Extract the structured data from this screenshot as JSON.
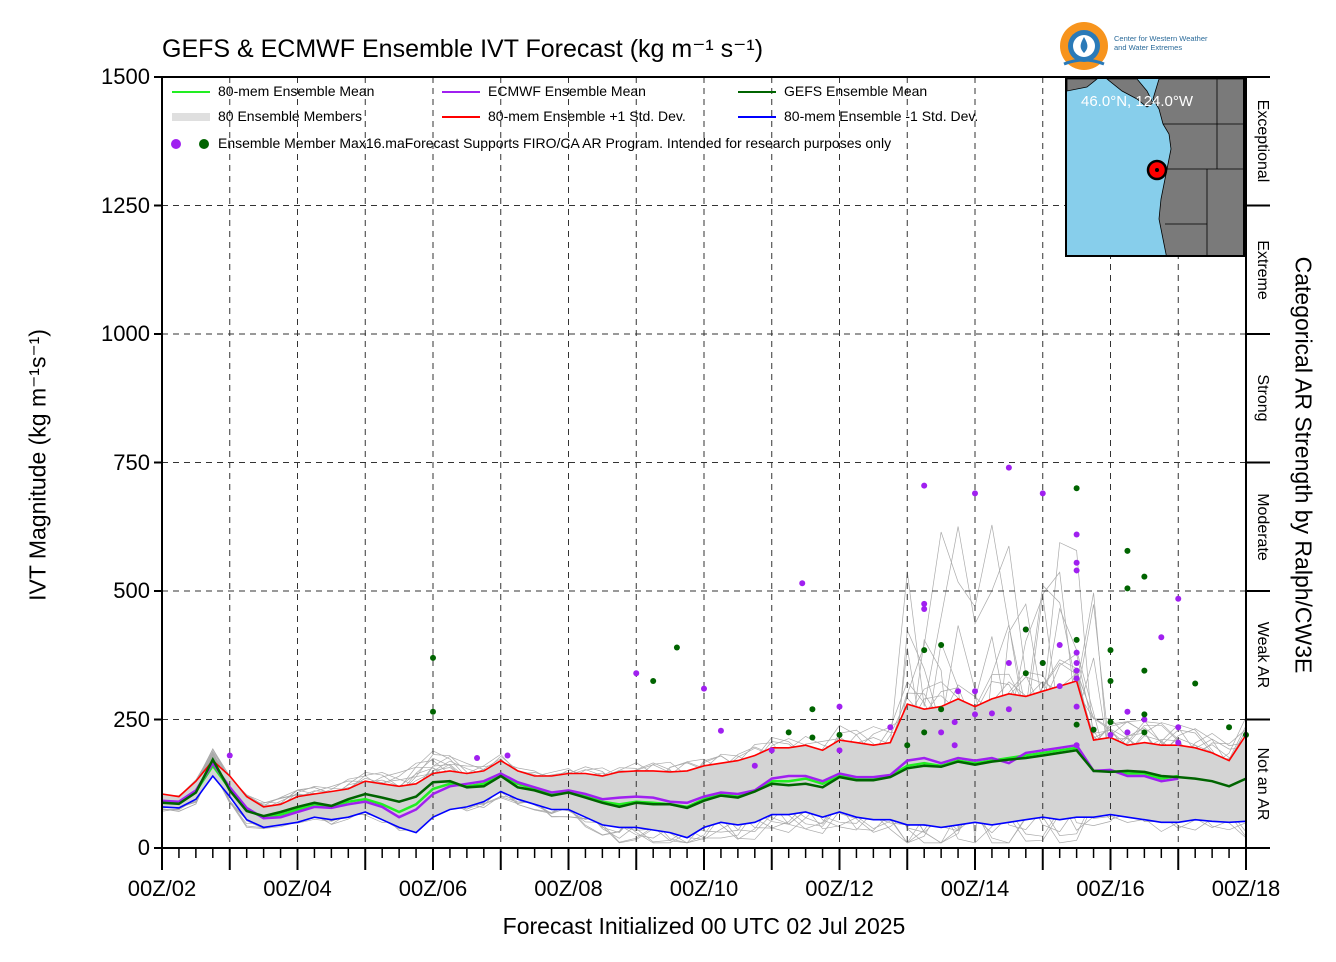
{
  "chart_data": {
    "type": "line",
    "title": "GEFS & ECMWF Ensemble IVT Forecast (kg m⁻¹ s⁻¹)",
    "xlabel": "Forecast Initialized 00 UTC 02 Jul 2025",
    "ylabel": "IVT Magnitude (kg m⁻¹s⁻¹)",
    "y2label": "Categorical AR Strength by Ralph/CW3E",
    "ylim": [
      0,
      1500
    ],
    "xlim_days": [
      2,
      18
    ],
    "yticks": [
      "0",
      "250",
      "500",
      "750",
      "1000",
      "1250",
      "1500"
    ],
    "xticks": [
      "00Z/02",
      "00Z/04",
      "00Z/06",
      "00Z/08",
      "00Z/10",
      "00Z/12",
      "00Z/14",
      "00Z/16",
      "00Z/18"
    ],
    "grid": true,
    "legend_position": "top-left",
    "categories": [
      {
        "label": "Not an AR",
        "range": [
          0,
          250
        ]
      },
      {
        "label": "Weak AR",
        "range": [
          250,
          500
        ]
      },
      {
        "label": "Moderate",
        "range": [
          500,
          750
        ]
      },
      {
        "label": "Strong",
        "range": [
          750,
          1000
        ]
      },
      {
        "label": "Extreme",
        "range": [
          1000,
          1250
        ]
      },
      {
        "label": "Exceptional",
        "range": [
          1250,
          1500
        ]
      }
    ],
    "legend": [
      {
        "label": "80-mem Ensemble Mean",
        "color": "#22ee22"
      },
      {
        "label": "ECMWF Ensemble Mean",
        "color": "#a020f0"
      },
      {
        "label": "GEFS Ensemble Mean",
        "color": "#006400"
      },
      {
        "label": "80 Ensemble Members",
        "color": "#aaaaaa"
      },
      {
        "label": "80-mem Ensemble +1 Std. Dev.",
        "color": "#ff0000"
      },
      {
        "label": "80-mem Ensemble -1 Std. Dev.",
        "color": "#0000ff"
      },
      {
        "label": "Ensemble Member Max16.maForecast Supports FIRO/CA AR Program. Intended for research purposes only",
        "color": "#a020f0"
      }
    ],
    "series": [
      {
        "name": "80-mem Ensemble Mean",
        "color": "#22ee22",
        "x": [
          2.0,
          2.25,
          2.5,
          2.75,
          3.0,
          3.25,
          3.5,
          3.75,
          4.0,
          4.25,
          4.5,
          4.75,
          5.0,
          5.25,
          5.5,
          5.75,
          6.0,
          6.25,
          6.5,
          6.75,
          7.0,
          7.25,
          7.5,
          7.75,
          8.0,
          8.25,
          8.5,
          8.75,
          9.0,
          9.25,
          9.5,
          9.75,
          10.0,
          10.25,
          10.5,
          10.75,
          11.0,
          11.25,
          11.5,
          11.75,
          12.0,
          12.25,
          12.5,
          12.75,
          13.0,
          13.25,
          13.5,
          13.75,
          14.0,
          14.25,
          14.5,
          14.75,
          15.0,
          15.25,
          15.5,
          15.75,
          16.0,
          16.25,
          16.5,
          16.75,
          17.0
        ],
        "y": [
          90,
          88,
          110,
          160,
          115,
          75,
          60,
          65,
          75,
          85,
          80,
          90,
          95,
          85,
          70,
          85,
          115,
          125,
          120,
          125,
          140,
          125,
          115,
          105,
          110,
          100,
          90,
          85,
          90,
          88,
          85,
          80,
          95,
          105,
          100,
          110,
          130,
          130,
          135,
          125,
          140,
          135,
          135,
          140,
          160,
          165,
          160,
          170,
          165,
          170,
          175,
          180,
          185,
          190,
          195,
          150,
          150,
          145,
          145,
          135,
          140
        ]
      },
      {
        "name": "ECMWF Ensemble Mean",
        "color": "#a020f0",
        "x": [
          2.0,
          2.25,
          2.5,
          2.75,
          3.0,
          3.25,
          3.5,
          3.75,
          4.0,
          4.25,
          4.5,
          4.75,
          5.0,
          5.25,
          5.5,
          5.75,
          6.0,
          6.25,
          6.5,
          6.75,
          7.0,
          7.25,
          7.5,
          7.75,
          8.0,
          8.25,
          8.5,
          8.75,
          9.0,
          9.25,
          9.5,
          9.75,
          10.0,
          10.25,
          10.5,
          10.75,
          11.0,
          11.25,
          11.5,
          11.75,
          12.0,
          12.25,
          12.5,
          12.75,
          13.0,
          13.25,
          13.5,
          13.75,
          14.0,
          14.25,
          14.5,
          14.75,
          15.0,
          15.25,
          15.5,
          15.75,
          16.0,
          16.25,
          16.5,
          16.75,
          17.0
        ],
        "y": [
          92,
          90,
          112,
          165,
          118,
          78,
          58,
          60,
          70,
          80,
          78,
          85,
          90,
          80,
          60,
          75,
          105,
          120,
          125,
          130,
          145,
          128,
          118,
          108,
          112,
          105,
          95,
          98,
          100,
          98,
          90,
          88,
          100,
          108,
          105,
          112,
          135,
          140,
          140,
          130,
          145,
          138,
          138,
          142,
          170,
          175,
          165,
          175,
          170,
          175,
          165,
          185,
          190,
          195,
          200,
          150,
          152,
          140,
          140,
          130,
          135
        ]
      },
      {
        "name": "GEFS Ensemble Mean",
        "color": "#006400",
        "x": [
          2.0,
          2.25,
          2.5,
          2.75,
          3.0,
          3.25,
          3.5,
          3.75,
          4.0,
          4.25,
          4.5,
          4.75,
          5.0,
          5.25,
          5.5,
          5.75,
          6.0,
          6.25,
          6.5,
          6.75,
          7.0,
          7.25,
          7.5,
          7.75,
          8.0,
          8.25,
          8.5,
          8.75,
          9.0,
          9.25,
          9.5,
          9.75,
          10.0,
          10.25,
          10.5,
          10.75,
          11.0,
          11.25,
          11.5,
          11.75,
          12.0,
          12.25,
          12.5,
          12.75,
          13.0,
          13.25,
          13.5,
          13.75,
          14.0,
          14.25,
          14.5,
          14.75,
          15.0,
          15.25,
          15.5,
          15.75,
          16.0,
          16.25,
          16.5,
          16.75,
          17.0,
          17.25,
          17.5,
          17.75,
          18.0
        ],
        "y": [
          88,
          86,
          108,
          172,
          112,
          72,
          62,
          70,
          80,
          88,
          82,
          95,
          105,
          98,
          90,
          100,
          128,
          130,
          118,
          120,
          140,
          118,
          112,
          102,
          108,
          98,
          88,
          80,
          88,
          85,
          85,
          78,
          92,
          102,
          98,
          110,
          125,
          122,
          125,
          118,
          138,
          132,
          132,
          138,
          155,
          160,
          158,
          168,
          162,
          168,
          172,
          175,
          180,
          185,
          190,
          150,
          148,
          150,
          148,
          140,
          138,
          135,
          130,
          120,
          135
        ]
      },
      {
        "name": "80-mem Ensemble +1 Std. Dev.",
        "color": "#ff0000",
        "x": [
          2.0,
          2.25,
          2.5,
          2.75,
          3.0,
          3.25,
          3.5,
          3.75,
          4.0,
          4.25,
          4.5,
          4.75,
          5.0,
          5.25,
          5.5,
          5.75,
          6.0,
          6.25,
          6.5,
          6.75,
          7.0,
          7.25,
          7.5,
          7.75,
          8.0,
          8.25,
          8.5,
          8.75,
          9.0,
          9.25,
          9.5,
          9.75,
          10.0,
          10.25,
          10.5,
          10.75,
          11.0,
          11.25,
          11.5,
          11.75,
          12.0,
          12.25,
          12.5,
          12.75,
          13.0,
          13.25,
          13.5,
          13.75,
          14.0,
          14.25,
          14.5,
          14.75,
          15.0,
          15.25,
          15.5,
          15.75,
          16.0,
          16.25,
          16.5,
          16.75,
          17.0,
          17.25,
          17.5,
          17.75,
          18.0
        ],
        "y": [
          105,
          100,
          130,
          170,
          140,
          100,
          80,
          85,
          100,
          105,
          110,
          115,
          130,
          125,
          120,
          125,
          145,
          150,
          145,
          150,
          170,
          150,
          140,
          140,
          145,
          145,
          140,
          148,
          150,
          150,
          148,
          150,
          160,
          165,
          170,
          180,
          195,
          195,
          200,
          190,
          210,
          205,
          200,
          205,
          280,
          270,
          275,
          290,
          275,
          290,
          300,
          295,
          305,
          315,
          325,
          210,
          215,
          200,
          205,
          200,
          200,
          195,
          185,
          170,
          220
        ]
      },
      {
        "name": "80-mem Ensemble -1 Std. Dev.",
        "color": "#0000ff",
        "x": [
          2.0,
          2.25,
          2.5,
          2.75,
          3.0,
          3.25,
          3.5,
          3.75,
          4.0,
          4.25,
          4.5,
          4.75,
          5.0,
          5.25,
          5.5,
          5.75,
          6.0,
          6.25,
          6.5,
          6.75,
          7.0,
          7.25,
          7.5,
          7.75,
          8.0,
          8.25,
          8.5,
          8.75,
          9.0,
          9.25,
          9.5,
          9.75,
          10.0,
          10.25,
          10.5,
          10.75,
          11.0,
          11.25,
          11.5,
          11.75,
          12.0,
          12.25,
          12.5,
          12.75,
          13.0,
          13.25,
          13.5,
          13.75,
          14.0,
          14.25,
          14.5,
          14.75,
          15.0,
          15.25,
          15.5,
          15.75,
          16.0,
          16.25,
          16.5,
          16.75,
          17.0,
          17.25,
          17.5,
          17.75,
          18.0
        ],
        "y": [
          80,
          78,
          95,
          140,
          100,
          55,
          40,
          45,
          50,
          60,
          55,
          60,
          70,
          55,
          40,
          30,
          60,
          75,
          80,
          90,
          110,
          95,
          85,
          75,
          75,
          60,
          45,
          40,
          40,
          35,
          30,
          20,
          40,
          50,
          45,
          50,
          65,
          65,
          70,
          60,
          70,
          60,
          55,
          55,
          45,
          45,
          40,
          45,
          50,
          45,
          50,
          55,
          60,
          55,
          60,
          60,
          65,
          60,
          55,
          50,
          50,
          55,
          52,
          50,
          52
        ]
      }
    ],
    "max_points_ecmwf": [
      [
        3.0,
        180
      ],
      [
        6.65,
        175
      ],
      [
        7.1,
        180
      ],
      [
        9.0,
        340
      ],
      [
        10.0,
        310
      ],
      [
        10.25,
        228
      ],
      [
        10.75,
        160
      ],
      [
        11.0,
        190
      ],
      [
        11.45,
        515
      ],
      [
        12.0,
        190
      ],
      [
        12.0,
        275
      ],
      [
        12.75,
        235
      ],
      [
        13.25,
        705
      ],
      [
        13.25,
        465
      ],
      [
        13.25,
        475
      ],
      [
        13.5,
        225
      ],
      [
        13.7,
        200
      ],
      [
        13.7,
        245
      ],
      [
        13.75,
        305
      ],
      [
        14.0,
        690
      ],
      [
        14.0,
        305
      ],
      [
        14.0,
        260
      ],
      [
        14.25,
        262
      ],
      [
        14.5,
        740
      ],
      [
        14.5,
        360
      ],
      [
        14.5,
        270
      ],
      [
        14.75,
        425
      ],
      [
        15.0,
        690
      ],
      [
        15.0,
        360
      ],
      [
        15.25,
        395
      ],
      [
        15.25,
        315
      ],
      [
        15.5,
        610
      ],
      [
        15.5,
        555
      ],
      [
        15.5,
        540
      ],
      [
        15.5,
        380
      ],
      [
        15.5,
        360
      ],
      [
        15.5,
        345
      ],
      [
        15.5,
        330
      ],
      [
        15.5,
        275
      ],
      [
        15.5,
        200
      ],
      [
        15.75,
        230
      ],
      [
        16.0,
        220
      ],
      [
        16.25,
        265
      ],
      [
        16.25,
        225
      ],
      [
        16.5,
        250
      ],
      [
        16.75,
        410
      ],
      [
        17.0,
        485
      ],
      [
        17.0,
        235
      ],
      [
        17.0,
        205
      ]
    ],
    "max_points_gefs": [
      [
        6.0,
        370
      ],
      [
        6.0,
        265
      ],
      [
        9.25,
        325
      ],
      [
        9.6,
        390
      ],
      [
        11.25,
        225
      ],
      [
        11.6,
        270
      ],
      [
        11.6,
        215
      ],
      [
        12.0,
        220
      ],
      [
        13.0,
        200
      ],
      [
        13.25,
        385
      ],
      [
        13.25,
        225
      ],
      [
        13.5,
        395
      ],
      [
        13.5,
        270
      ],
      [
        14.75,
        425
      ],
      [
        14.75,
        340
      ],
      [
        15.0,
        360
      ],
      [
        15.5,
        700
      ],
      [
        15.5,
        405
      ],
      [
        15.5,
        240
      ],
      [
        15.75,
        230
      ],
      [
        16.0,
        385
      ],
      [
        16.0,
        325
      ],
      [
        16.0,
        245
      ],
      [
        16.25,
        578
      ],
      [
        16.25,
        505
      ],
      [
        16.5,
        528
      ],
      [
        16.5,
        345
      ],
      [
        16.5,
        260
      ],
      [
        16.5,
        225
      ],
      [
        17.25,
        320
      ],
      [
        17.75,
        235
      ],
      [
        18.0,
        220
      ]
    ]
  },
  "inset": {
    "location": "46.0°N, 124.0°W"
  },
  "logo": {
    "line1": "Center for Western Weather",
    "line2": "and Water Extremes"
  }
}
